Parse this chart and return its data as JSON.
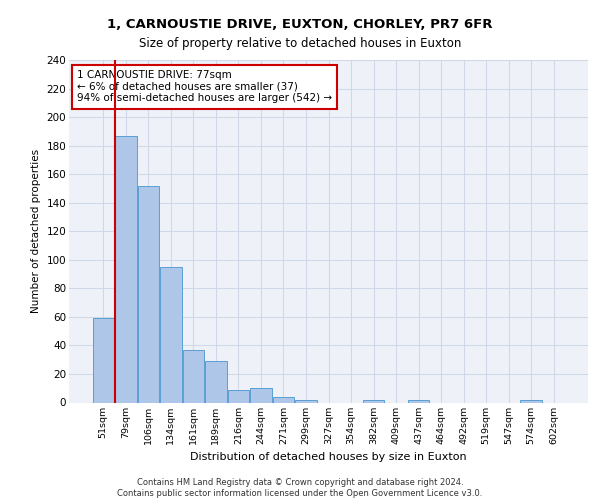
{
  "title1": "1, CARNOUSTIE DRIVE, EUXTON, CHORLEY, PR7 6FR",
  "title2": "Size of property relative to detached houses in Euxton",
  "xlabel": "Distribution of detached houses by size in Euxton",
  "ylabel": "Number of detached properties",
  "bin_labels": [
    "51sqm",
    "79sqm",
    "106sqm",
    "134sqm",
    "161sqm",
    "189sqm",
    "216sqm",
    "244sqm",
    "271sqm",
    "299sqm",
    "327sqm",
    "354sqm",
    "382sqm",
    "409sqm",
    "437sqm",
    "464sqm",
    "492sqm",
    "519sqm",
    "547sqm",
    "574sqm",
    "602sqm"
  ],
  "bar_values": [
    59,
    187,
    152,
    95,
    37,
    29,
    9,
    10,
    4,
    2,
    0,
    0,
    2,
    0,
    2,
    0,
    0,
    0,
    0,
    2,
    0
  ],
  "bar_color": "#aec6e8",
  "bar_edgecolor": "#5a9fd4",
  "property_line_x": 0.5,
  "annotation_text": "1 CARNOUSTIE DRIVE: 77sqm\n← 6% of detached houses are smaller (37)\n94% of semi-detached houses are larger (542) →",
  "annotation_box_color": "#cc0000",
  "grid_color": "#d0d8e8",
  "bg_color": "#eef2f8",
  "footer_text": "Contains HM Land Registry data © Crown copyright and database right 2024.\nContains public sector information licensed under the Open Government Licence v3.0.",
  "ylim": [
    0,
    240
  ],
  "yticks": [
    0,
    20,
    40,
    60,
    80,
    100,
    120,
    140,
    160,
    180,
    200,
    220,
    240
  ]
}
